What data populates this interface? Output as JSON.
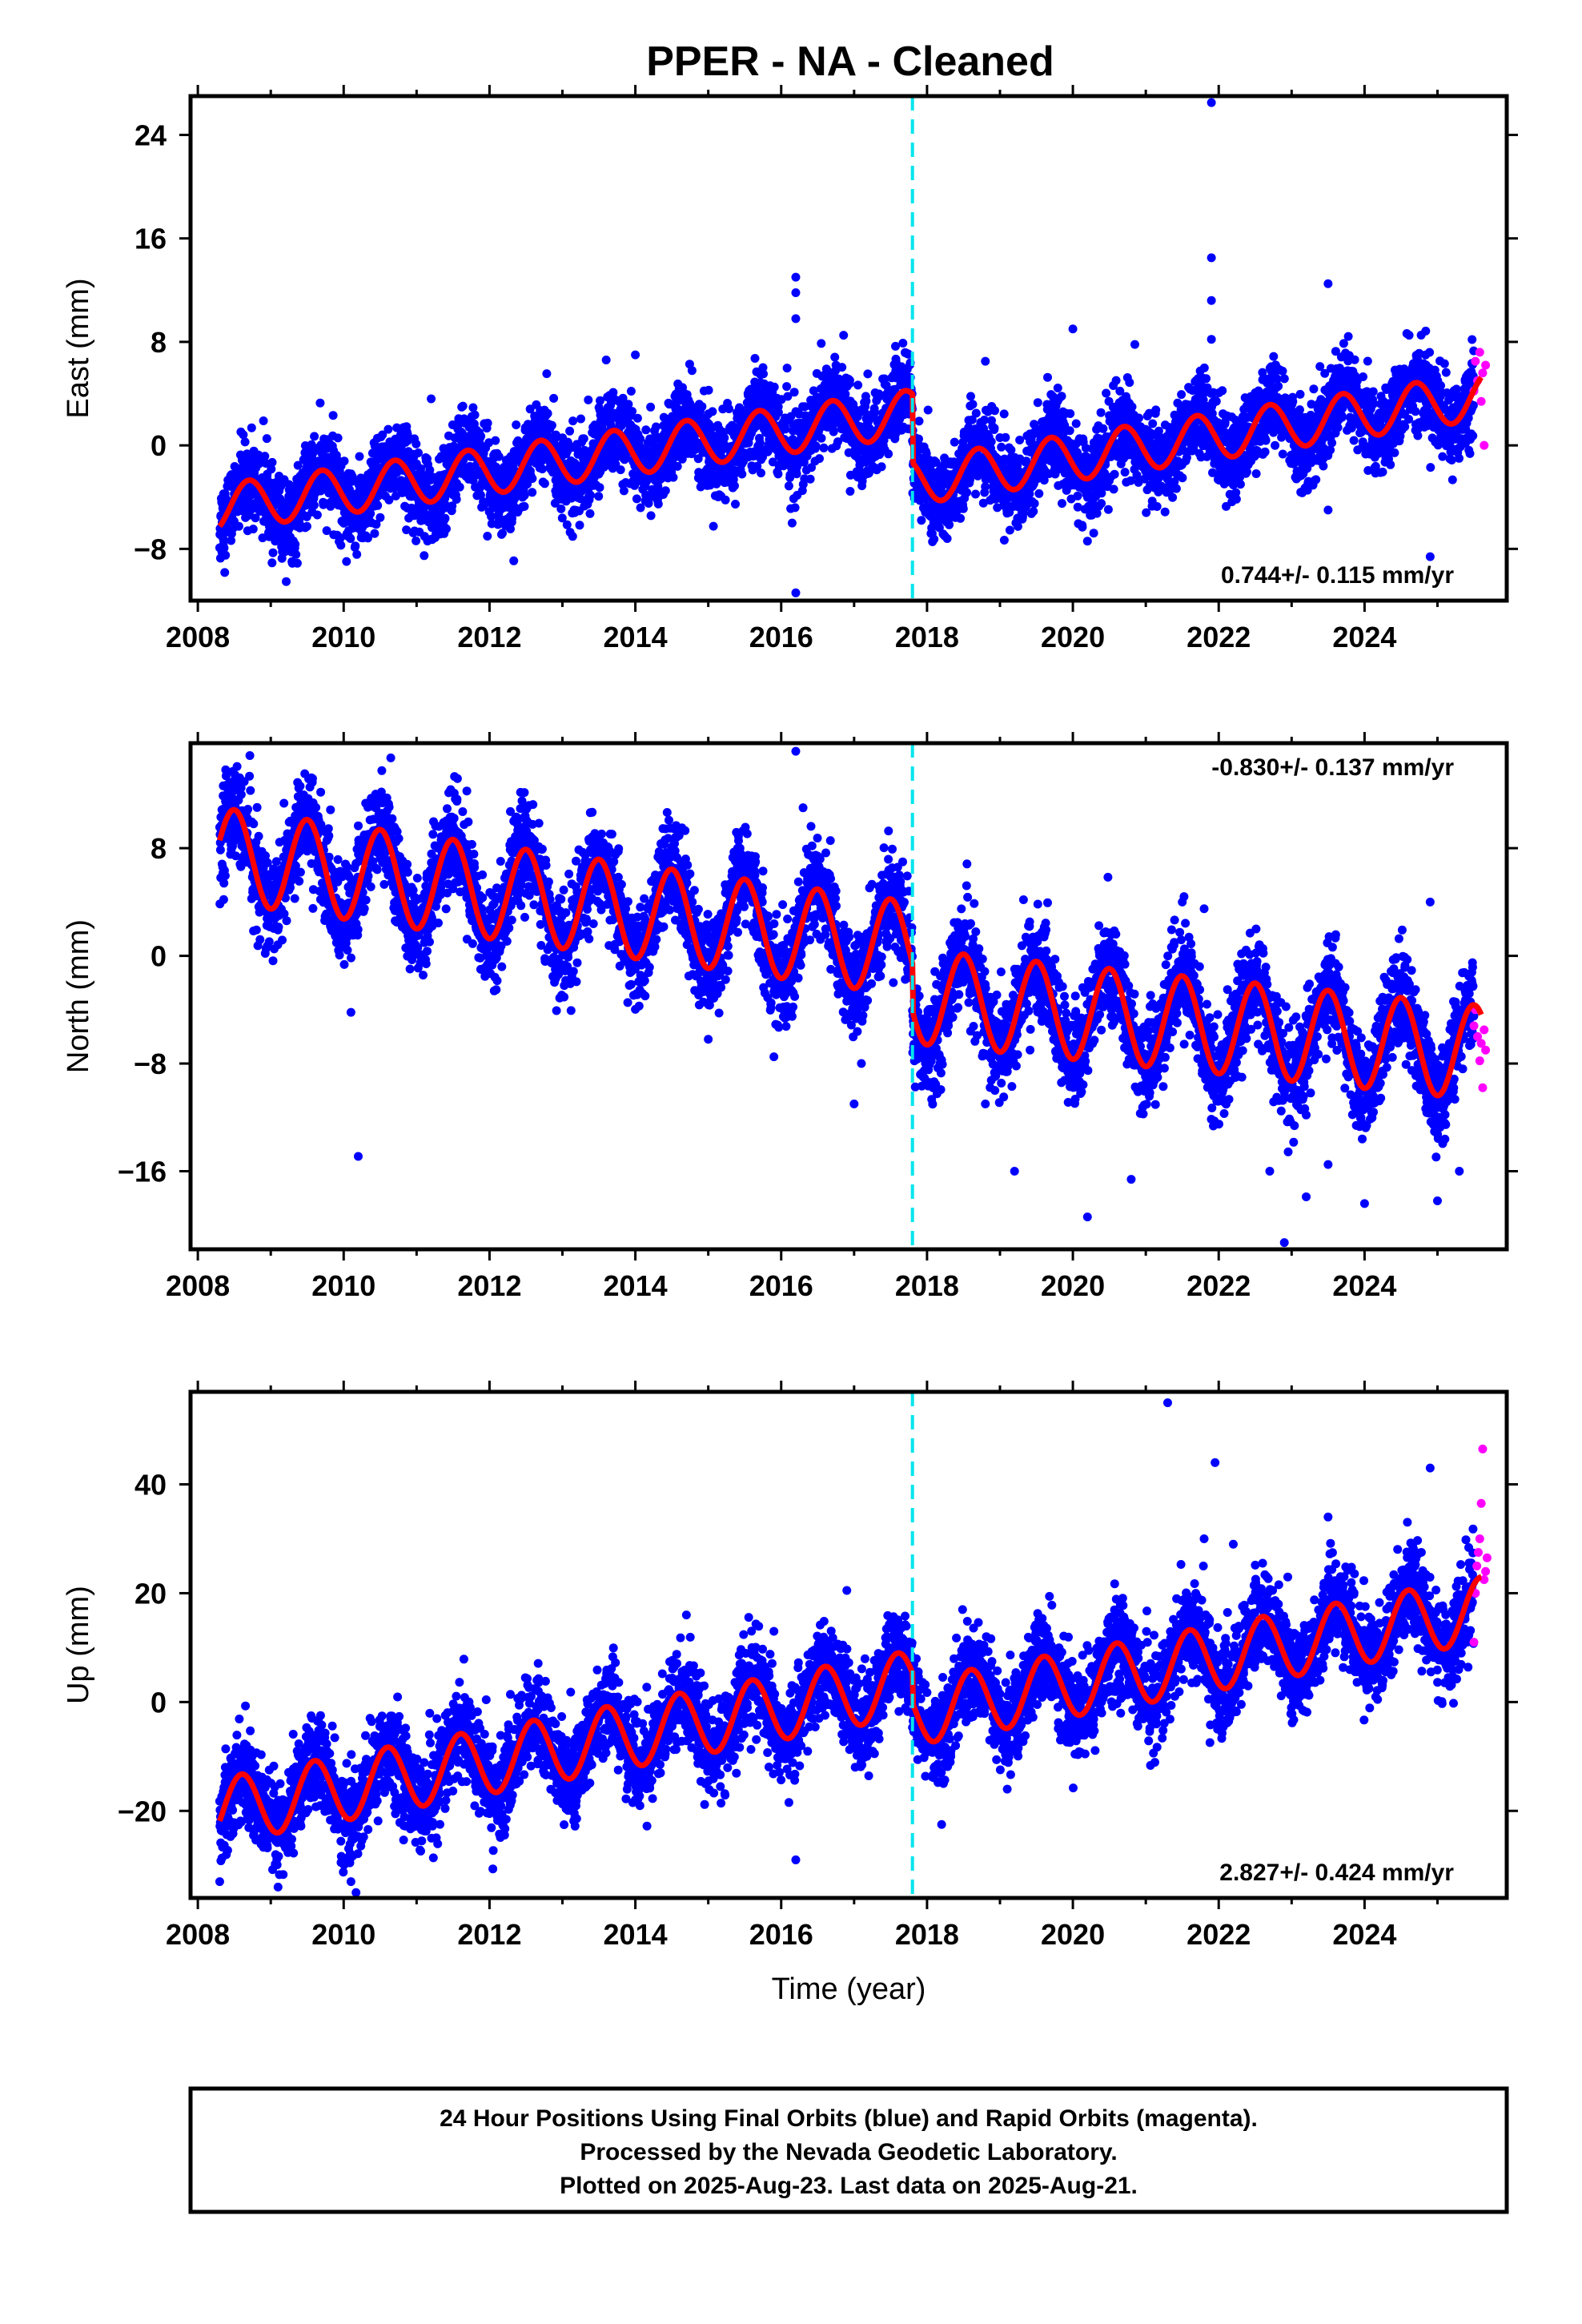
{
  "title": "PPER  - NA - Cleaned",
  "colors": {
    "final_orbits": "#0000ff",
    "rapid_orbits": "#ff00ff",
    "model": "#ff0000",
    "event_line": "#00e5ee",
    "frame": "#000000"
  },
  "xlabel": "Time (year)",
  "footer": {
    "line1": "24 Hour Positions Using Final Orbits (blue) and Rapid Orbits (magenta).",
    "line2": "Processed by the Nevada Geodetic Laboratory.",
    "line3": "Plotted on 2025-Aug-23. Last data on 2025-Aug-21."
  },
  "chart_data": [
    {
      "type": "scatter",
      "component": "East",
      "ylabel": "East (mm)",
      "xlim": [
        2007.9,
        2025.95
      ],
      "ylim": [
        -12,
        27
      ],
      "xticks": [
        2008,
        2010,
        2012,
        2014,
        2016,
        2018,
        2020,
        2022,
        2024
      ],
      "yticks": [
        -8,
        0,
        8,
        16,
        24
      ],
      "event_line_x": 2017.8,
      "rate_label": "0.744+/- 0.115 mm/yr",
      "rate_label_position": "bottom-right",
      "model": {
        "mean_before": [
          [
            2008.3,
            -4.8
          ],
          [
            2017.8,
            2.5
          ]
        ],
        "mean_after": [
          [
            2017.8,
            -2.8
          ],
          [
            2025.6,
            3.8
          ]
        ],
        "seasonal_amplitude": 1.8,
        "peak_phase_year_fraction": 0.7
      },
      "scatter_spread": 1.6,
      "outliers": [
        [
          2021.9,
          26.5
        ],
        [
          2021.9,
          14.5
        ],
        [
          2021.9,
          11.2
        ],
        [
          2021.9,
          8.2
        ],
        [
          2016.2,
          13
        ],
        [
          2016.2,
          11.8
        ],
        [
          2016.2,
          9.8
        ],
        [
          2016.2,
          -11.4
        ],
        [
          2016.15,
          -6
        ],
        [
          2014.0,
          7
        ],
        [
          2020.0,
          9
        ],
        [
          2020.2,
          -7.4
        ],
        [
          2023.5,
          12.5
        ],
        [
          2023.5,
          -5
        ],
        [
          2024.9,
          -8.6
        ],
        [
          2008.9,
          1.9
        ],
        [
          2011.2,
          3.6
        ],
        [
          2020.85,
          7.8
        ],
        [
          2013.6,
          6.6
        ],
        [
          2018.8,
          6.5
        ],
        [
          2022.8,
          6.0
        ]
      ],
      "rapid_orbits": [
        [
          2025.5,
          4.2
        ],
        [
          2025.52,
          6.5
        ],
        [
          2025.55,
          5.0
        ],
        [
          2025.58,
          7.2
        ],
        [
          2025.6,
          3.4
        ],
        [
          2025.62,
          5.6
        ],
        [
          2025.64,
          0.0
        ],
        [
          2025.66,
          6.2
        ]
      ]
    },
    {
      "type": "scatter",
      "component": "North",
      "ylabel": "North (mm)",
      "xlim": [
        2007.9,
        2025.95
      ],
      "ylim": [
        -21.8,
        15.8
      ],
      "xticks": [
        2008,
        2010,
        2012,
        2014,
        2016,
        2018,
        2020,
        2022,
        2024
      ],
      "yticks": [
        -16,
        -8,
        0,
        8
      ],
      "event_line_x": 2017.8,
      "rate_label": "-0.830+/- 0.137 mm/yr",
      "rate_label_position": "top-right",
      "model": {
        "mean_before": [
          [
            2008.3,
            7.5
          ],
          [
            2017.8,
            0.5
          ]
        ],
        "mean_after": [
          [
            2017.8,
            -3.0
          ],
          [
            2025.6,
            -7.2
          ]
        ],
        "seasonal_amplitude": 3.5,
        "peak_phase_year_fraction": 0.5
      },
      "scatter_spread": 1.8,
      "outliers": [
        [
          2016.2,
          15.2
        ],
        [
          2016.3,
          11
        ],
        [
          2010.2,
          -14.9
        ],
        [
          2010.1,
          -4.2
        ],
        [
          2015.9,
          -7.5
        ],
        [
          2016.15,
          -4.5
        ],
        [
          2017.0,
          -11
        ],
        [
          2017.1,
          -8
        ],
        [
          2018.8,
          -11
        ],
        [
          2019.2,
          -16
        ],
        [
          2020.2,
          -19.4
        ],
        [
          2020.8,
          -16.6
        ],
        [
          2021.5,
          4.0
        ],
        [
          2021.8,
          3.5
        ],
        [
          2022.7,
          -16
        ],
        [
          2022.9,
          -21.3
        ],
        [
          2023.2,
          -17.9
        ],
        [
          2024.0,
          -18.4
        ],
        [
          2024.9,
          4.0
        ],
        [
          2025.0,
          -18.2
        ],
        [
          2015.0,
          -6.2
        ],
        [
          2023.5,
          -15.5
        ],
        [
          2025.3,
          -16.0
        ]
      ],
      "rapid_orbits": [
        [
          2025.5,
          -5.2
        ],
        [
          2025.52,
          -4.0
        ],
        [
          2025.55,
          -6.0
        ],
        [
          2025.58,
          -7.8
        ],
        [
          2025.6,
          -6.5
        ],
        [
          2025.62,
          -9.8
        ],
        [
          2025.64,
          -5.5
        ],
        [
          2025.66,
          -7.0
        ]
      ]
    },
    {
      "type": "scatter",
      "component": "Up",
      "ylabel": "Up (mm)",
      "xlim": [
        2007.9,
        2025.95
      ],
      "ylim": [
        -36,
        57
      ],
      "xticks": [
        2008,
        2010,
        2012,
        2014,
        2016,
        2018,
        2020,
        2022,
        2024
      ],
      "yticks": [
        -20,
        0,
        20,
        40
      ],
      "event_line_x": 2017.8,
      "rate_label": "2.827+/- 0.424 mm/yr",
      "rate_label_position": "bottom-right",
      "model": {
        "mean_before": [
          [
            2008.3,
            -20.0
          ],
          [
            2017.8,
            3.5
          ]
        ],
        "mean_after": [
          [
            2017.8,
            -2.0
          ],
          [
            2025.6,
            17.0
          ]
        ],
        "seasonal_amplitude": 6.0,
        "peak_phase_year_fraction": 0.6
      },
      "scatter_spread": 4.2,
      "outliers": [
        [
          2021.3,
          55
        ],
        [
          2021.95,
          44
        ],
        [
          2024.9,
          43
        ],
        [
          2023.5,
          34
        ],
        [
          2021.8,
          30
        ],
        [
          2022.2,
          29
        ],
        [
          2016.2,
          -29
        ],
        [
          2016.9,
          20.5
        ],
        [
          2014.7,
          16
        ],
        [
          2015.9,
          13
        ],
        [
          2009.1,
          -34
        ],
        [
          2008.3,
          -33
        ],
        [
          2018.2,
          -22.5
        ],
        [
          2019.1,
          -16
        ],
        [
          2010.1,
          -33
        ]
      ],
      "rapid_orbits": [
        [
          2025.5,
          11.0
        ],
        [
          2025.52,
          20.0
        ],
        [
          2025.54,
          25.0
        ],
        [
          2025.56,
          27.5
        ],
        [
          2025.58,
          30.0
        ],
        [
          2025.6,
          36.5
        ],
        [
          2025.62,
          46.5
        ],
        [
          2025.64,
          22.5
        ],
        [
          2025.66,
          24.0
        ],
        [
          2025.68,
          26.5
        ]
      ]
    }
  ]
}
